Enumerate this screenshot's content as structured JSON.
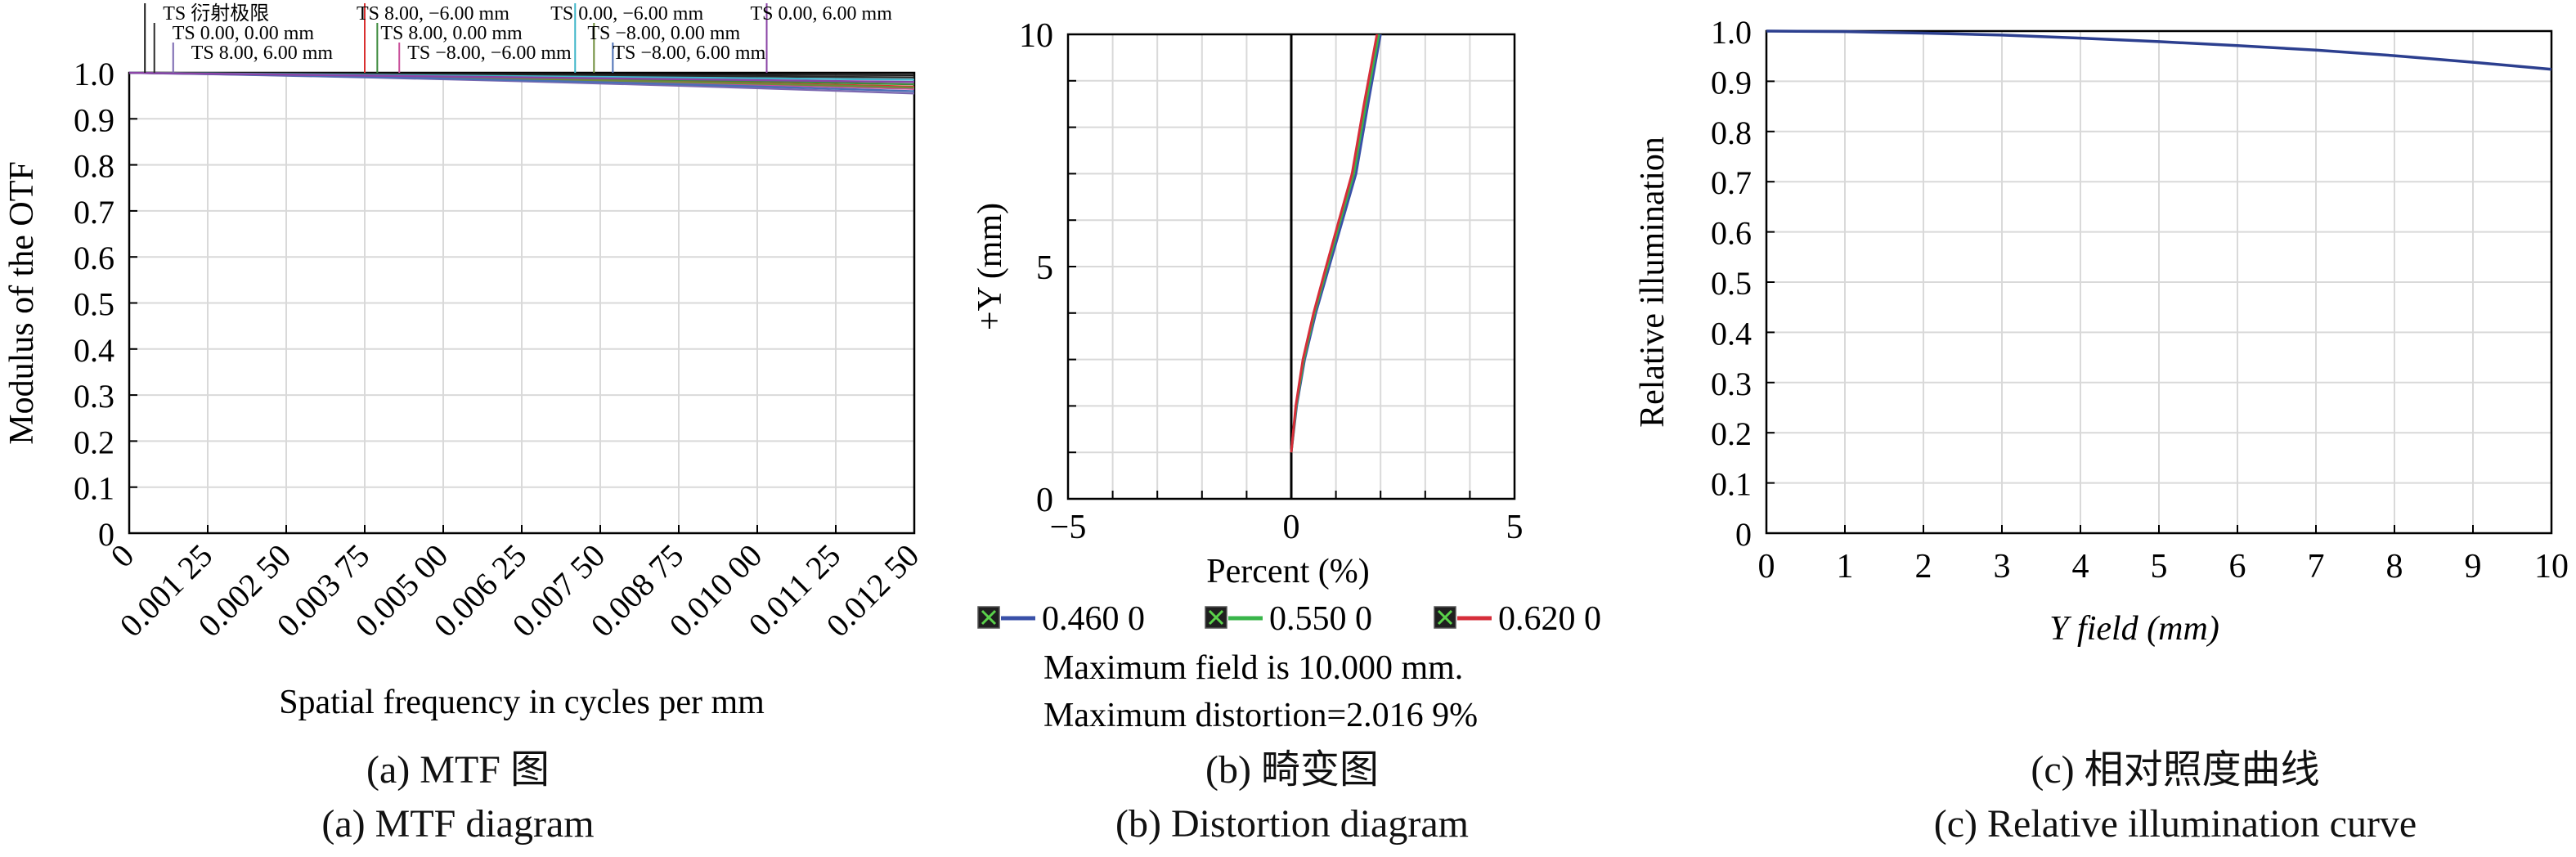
{
  "chart_data": [
    {
      "type": "line",
      "title": "",
      "xlabel": "Spatial frequency in cycles per mm",
      "ylabel": "Modulus of the OTF",
      "xlim": [
        0,
        0.0125
      ],
      "ylim": [
        0,
        1.0
      ],
      "x_ticks": [
        "0",
        "0.001 25",
        "0.002 50",
        "0.003 75",
        "0.005 00",
        "0.006 25",
        "0.007 50",
        "0.008 75",
        "0.010 00",
        "0.011 25",
        "0.012 50"
      ],
      "y_ticks": [
        "0",
        "0.1",
        "0.2",
        "0.3",
        "0.4",
        "0.5",
        "0.6",
        "0.7",
        "0.8",
        "0.9",
        "1.0"
      ],
      "grid": true,
      "legend": [
        {
          "label": "TS 衍射极限",
          "color": "#1a1a1a",
          "x": 0.00025,
          "end": 0.995
        },
        {
          "label": "TS 0.00, 0.00 mm",
          "color": "#2a2a2a",
          "x": 0.0004,
          "end": 0.99
        },
        {
          "label": "TS 8.00, 6.00 mm",
          "color": "#7b68b0",
          "x": 0.0007,
          "end": 0.955
        },
        {
          "label": "TS 8.00, −6.00 mm",
          "color": "#d93030",
          "x": 0.00375,
          "end": 0.97
        },
        {
          "label": "TS 8.00, 0.00 mm",
          "color": "#3c8a3c",
          "x": 0.00395,
          "end": 0.975
        },
        {
          "label": "TS −8.00, −6.00 mm",
          "color": "#c94f9a",
          "x": 0.0043,
          "end": 0.965
        },
        {
          "label": "TS 0.00, −6.00 mm",
          "color": "#3fb5c8",
          "x": 0.0071,
          "end": 0.985
        },
        {
          "label": "TS −8.00, 0.00 mm",
          "color": "#6d8c3a",
          "x": 0.0074,
          "end": 0.968
        },
        {
          "label": "TS −8.00, 6.00 mm",
          "color": "#4a6fb5",
          "x": 0.0077,
          "end": 0.96
        },
        {
          "label": "TS 0.00, 6.00 mm",
          "color": "#8b44a6",
          "x": 0.01015,
          "end": 0.98
        }
      ],
      "caption_zh": "(a) MTF 图",
      "caption_en": "(a) MTF diagram"
    },
    {
      "type": "line",
      "title": "",
      "xlabel": "Percent (%)",
      "ylabel": "+Y (mm)",
      "xlim": [
        -5,
        5
      ],
      "ylim": [
        0,
        10
      ],
      "x_ticks": [
        "−5",
        "0",
        "5"
      ],
      "y_ticks": [
        "0",
        "5",
        "10"
      ],
      "grid": true,
      "series": [
        {
          "name": "0.460 0",
          "color": "#3950a8",
          "x": [
            0,
            0.12,
            0.3,
            0.55,
            0.85,
            1.15,
            1.45,
            1.72,
            2.0
          ],
          "y": [
            1.0,
            2.0,
            3.0,
            4.0,
            5.0,
            6.0,
            7.0,
            8.5,
            10.0
          ]
        },
        {
          "name": "0.550 0",
          "color": "#39b54a",
          "x": [
            0,
            0.11,
            0.28,
            0.52,
            0.81,
            1.1,
            1.4,
            1.67,
            1.96
          ],
          "y": [
            1.0,
            2.0,
            3.0,
            4.0,
            5.0,
            6.0,
            7.0,
            8.5,
            10.0
          ]
        },
        {
          "name": "0.620 0",
          "color": "#d62e3a",
          "x": [
            0,
            0.1,
            0.26,
            0.5,
            0.78,
            1.07,
            1.36,
            1.63,
            1.92
          ],
          "y": [
            1.0,
            2.0,
            3.0,
            4.0,
            5.0,
            6.0,
            7.0,
            8.5,
            10.0
          ]
        }
      ],
      "notes": [
        "Maximum field is 10.000 mm.",
        "Maximum distortion=2.016 9%"
      ],
      "caption_zh": "(b) 畸变图",
      "caption_en": "(b) Distortion diagram"
    },
    {
      "type": "line",
      "title": "",
      "xlabel": "Y field (mm)",
      "ylabel": "Relative illumination",
      "xlim": [
        0,
        10
      ],
      "ylim": [
        0,
        1.0
      ],
      "x_ticks": [
        "0",
        "1",
        "2",
        "3",
        "4",
        "5",
        "6",
        "7",
        "8",
        "9",
        "10"
      ],
      "y_ticks": [
        "0",
        "0.1",
        "0.2",
        "0.3",
        "0.4",
        "0.5",
        "0.6",
        "0.7",
        "0.8",
        "0.9",
        "1.0"
      ],
      "grid": true,
      "series": [
        {
          "name": "",
          "color": "#2c3f8f",
          "x": [
            0,
            1,
            2,
            3,
            4,
            5,
            6,
            7,
            8,
            9,
            10
          ],
          "y": [
            1.0,
            0.999,
            0.996,
            0.992,
            0.986,
            0.979,
            0.971,
            0.962,
            0.951,
            0.938,
            0.924
          ]
        }
      ],
      "caption_zh": "(c) 相对照度曲线",
      "caption_en": "(c) Relative illumination curve"
    }
  ]
}
